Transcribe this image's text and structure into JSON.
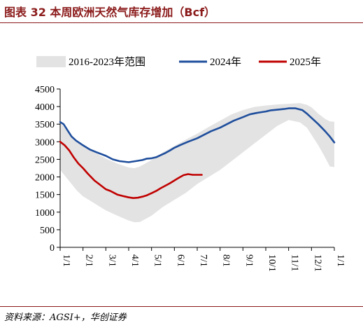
{
  "title": "图表 32  本周欧洲天然气库存增加（Bcf）",
  "source": "资料来源：AGSI+，华创证券",
  "chart_data": {
    "type": "line",
    "xlabel": "",
    "ylabel": "",
    "ylim": [
      0,
      4500
    ],
    "yticks": [
      0,
      500,
      1000,
      1500,
      2000,
      2500,
      3000,
      3500,
      4000,
      4500
    ],
    "xticks": [
      "1/1",
      "2/1",
      "3/1",
      "4/1",
      "5/1",
      "6/1",
      "7/1",
      "8/1",
      "9/1",
      "10/1",
      "11/1",
      "12/1",
      "1/1"
    ],
    "x_unit": "month",
    "xlim": [
      0,
      12
    ],
    "legend": {
      "placement": "top",
      "entries": [
        "2016-2023年范围",
        "2024年",
        "2025年"
      ]
    },
    "band": {
      "name": "2016-2023年范围",
      "color": "#e3e3e3",
      "x": [
        0,
        0.25,
        0.5,
        0.75,
        1,
        1.5,
        2,
        2.5,
        3,
        3.25,
        3.5,
        4,
        4.5,
        5,
        5.5,
        6,
        6.5,
        7,
        7.5,
        8,
        8.5,
        9,
        9.5,
        10,
        10.5,
        10.8,
        11,
        11.3,
        11.6,
        11.8,
        12
      ],
      "low": [
        2200,
        2000,
        1800,
        1600,
        1450,
        1250,
        1050,
        900,
        760,
        710,
        720,
        900,
        1150,
        1350,
        1550,
        1800,
        2000,
        2200,
        2450,
        2700,
        2950,
        3200,
        3450,
        3620,
        3550,
        3400,
        3200,
        2900,
        2550,
        2300,
        2280
      ],
      "high": [
        3550,
        3350,
        3180,
        3020,
        2900,
        2700,
        2520,
        2380,
        2270,
        2250,
        2300,
        2480,
        2700,
        2880,
        3060,
        3230,
        3420,
        3600,
        3780,
        3900,
        3990,
        4030,
        4060,
        4080,
        4100,
        4050,
        3980,
        3800,
        3650,
        3580,
        3570
      ]
    },
    "series": [
      {
        "name": "2024年",
        "color": "#1f4e9c",
        "x": [
          0,
          0.15,
          0.3,
          0.5,
          0.7,
          1,
          1.3,
          1.6,
          2,
          2.3,
          2.6,
          3,
          3.3,
          3.6,
          3.8,
          4,
          4.2,
          4.4,
          4.6,
          4.8,
          5,
          5.3,
          5.6,
          6,
          6.3,
          6.6,
          7,
          7.3,
          7.6,
          8,
          8.3,
          8.6,
          8.8,
          9,
          9.2,
          9.5,
          9.8,
          10,
          10.3,
          10.6,
          10.8,
          11,
          11.3,
          11.6,
          11.8,
          12
        ],
        "values": [
          3560,
          3500,
          3350,
          3150,
          3030,
          2900,
          2780,
          2700,
          2600,
          2500,
          2450,
          2420,
          2450,
          2480,
          2520,
          2530,
          2560,
          2620,
          2680,
          2750,
          2830,
          2920,
          3000,
          3100,
          3200,
          3300,
          3400,
          3500,
          3600,
          3700,
          3780,
          3820,
          3840,
          3860,
          3890,
          3910,
          3930,
          3950,
          3950,
          3900,
          3800,
          3680,
          3500,
          3300,
          3150,
          2980
        ]
      },
      {
        "name": "2025年",
        "color": "#c00000",
        "x": [
          0,
          0.2,
          0.4,
          0.6,
          0.8,
          1,
          1.2,
          1.5,
          1.8,
          2,
          2.2,
          2.5,
          2.8,
          3,
          3.2,
          3.4,
          3.6,
          3.8,
          4,
          4.2,
          4.4,
          4.6,
          4.8,
          5,
          5.2,
          5.4,
          5.6,
          5.8,
          6,
          6.2
        ],
        "values": [
          3000,
          2900,
          2750,
          2550,
          2380,
          2250,
          2100,
          1900,
          1750,
          1650,
          1600,
          1500,
          1450,
          1420,
          1400,
          1410,
          1440,
          1480,
          1540,
          1600,
          1680,
          1750,
          1820,
          1900,
          1980,
          2050,
          2080,
          2060,
          2060,
          2060
        ]
      }
    ]
  }
}
